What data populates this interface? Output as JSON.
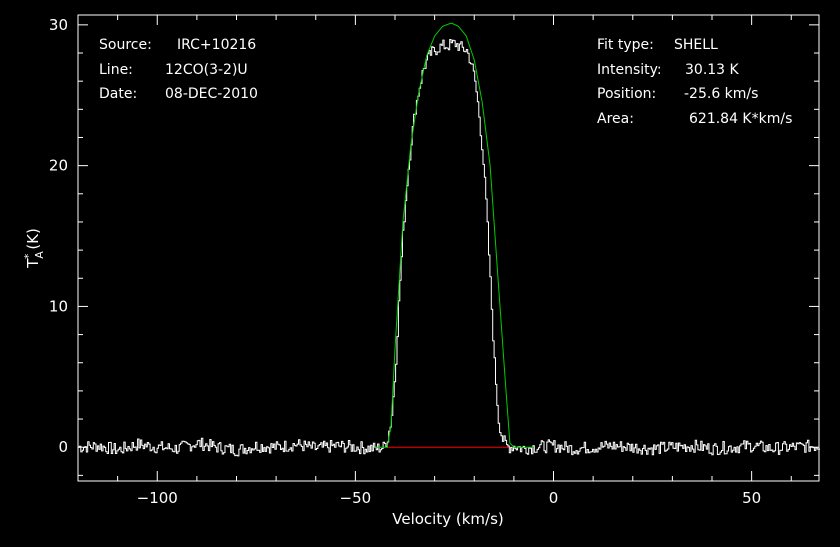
{
  "header": {
    "source_label": "Source:",
    "source_value": "IRC+10216",
    "line_label": "Line:",
    "line_value": "12CO(3-2)U",
    "date_label": "Date:",
    "date_value": "08-DEC-2010",
    "fit_label": "Fit type:",
    "fit_value": "SHELL",
    "intensity_label": "Intensity:",
    "intensity_value": "30.13 K",
    "position_label": "Position:",
    "position_value": "-25.6 km/s",
    "area_label": "Area:",
    "area_value": "621.84 K*km/s"
  },
  "colors": {
    "background": "#000000",
    "axes": "#ffffff",
    "spectrum": "#ffffff",
    "fit": "#00cc00",
    "baseline": "#ff0000"
  },
  "chart_data": {
    "type": "line",
    "xlabel": "Velocity (km/s)",
    "ylabel": "T_A^* (K)",
    "xlim": [
      -120,
      67
    ],
    "ylim": [
      -2.4,
      30.7
    ],
    "xticks": [
      -100,
      -50,
      0,
      50
    ],
    "xtick_labels": [
      "−100",
      "−50",
      "0",
      "50"
    ],
    "yticks": [
      0,
      10,
      20,
      30
    ],
    "ytick_labels": [
      "0",
      "10",
      "20",
      "30"
    ],
    "series": [
      {
        "role": "spectrum",
        "x": [
          -120,
          -115,
          -110,
          -105,
          -100,
          -95,
          -90,
          -85,
          -80,
          -75,
          -70,
          -65,
          -60,
          -55,
          -50,
          -45,
          -43,
          -42,
          -41,
          -40,
          -39,
          -38,
          -37,
          -36,
          -35,
          -34,
          -33,
          -32,
          -31,
          -30,
          -29,
          -28,
          -27,
          -26,
          -25,
          -24,
          -23,
          -22,
          -21,
          -20,
          -19,
          -18,
          -17,
          -16,
          -15,
          -14,
          -13,
          -12,
          -11,
          -10,
          -8,
          -5,
          0,
          5,
          10,
          15,
          20,
          25,
          30,
          35,
          40,
          45,
          50,
          55,
          60,
          67
        ],
        "y": [
          0.0,
          0.1,
          -0.2,
          0.2,
          0.0,
          -0.1,
          0.3,
          0.0,
          -0.2,
          0.1,
          0.0,
          0.2,
          -0.1,
          0.1,
          0.0,
          -0.1,
          0.0,
          0.6,
          2.0,
          5.5,
          11.0,
          15.5,
          19.0,
          21.8,
          24.0,
          25.5,
          26.8,
          27.5,
          28.0,
          28.2,
          28.4,
          28.5,
          28.5,
          28.6,
          28.7,
          28.5,
          28.3,
          28.2,
          27.4,
          26.2,
          24.0,
          21.0,
          17.0,
          11.5,
          6.0,
          2.0,
          0.6,
          0.1,
          0.0,
          0.1,
          -0.1,
          0.0,
          0.1,
          -0.1,
          0.0,
          0.1,
          0.0,
          -0.1,
          0.0,
          0.1,
          -0.1,
          0.0,
          0.1,
          -0.1,
          0.0,
          0.1
        ]
      },
      {
        "role": "fit",
        "x": [
          -45,
          -42,
          -41,
          -40,
          -38,
          -36,
          -34,
          -32,
          -30,
          -28,
          -26,
          -25.6,
          -24,
          -22,
          -20,
          -18,
          -16,
          -14,
          -12,
          -11,
          -10,
          -5
        ],
        "y": [
          0,
          0,
          1.5,
          7.0,
          16.0,
          21.5,
          25.2,
          27.8,
          29.2,
          29.9,
          30.1,
          30.1,
          29.9,
          29.2,
          27.5,
          24.5,
          20.0,
          12.0,
          4.0,
          0.3,
          0,
          0
        ]
      },
      {
        "role": "baseline",
        "x": [
          -42,
          -11
        ],
        "y": [
          0,
          0
        ]
      }
    ]
  }
}
